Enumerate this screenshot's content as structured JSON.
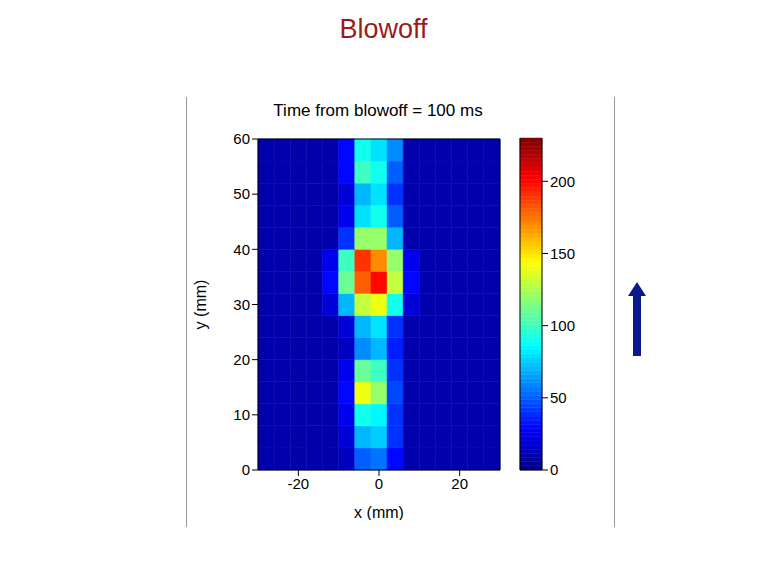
{
  "slide_title": "Blowoff",
  "chart_data": {
    "type": "heatmap",
    "title": "Time from blowoff = 100 ms",
    "x_label": "x (mm)",
    "y_label": "y (mm)",
    "xlim": [
      -30,
      30
    ],
    "ylim": [
      0,
      60
    ],
    "xticks": [
      -20,
      0,
      20
    ],
    "yticks": [
      0,
      10,
      20,
      30,
      40,
      50,
      60
    ],
    "grid": false,
    "x_edges": [
      -30,
      -26,
      -22,
      -18,
      -14,
      -10,
      -6,
      -2,
      2,
      6,
      10,
      14,
      18,
      22,
      26,
      30
    ],
    "y_edges": [
      0,
      4,
      8,
      12,
      16,
      20,
      24,
      28,
      32,
      36,
      40,
      44,
      48,
      52,
      56,
      60
    ],
    "cells": [
      [
        10,
        10,
        10,
        10,
        10,
        15,
        50,
        55,
        30,
        10,
        10,
        10,
        10,
        10,
        10
      ],
      [
        10,
        10,
        10,
        10,
        10,
        20,
        70,
        75,
        40,
        10,
        10,
        10,
        10,
        10,
        10
      ],
      [
        10,
        10,
        10,
        10,
        10,
        25,
        90,
        85,
        40,
        10,
        10,
        10,
        10,
        10,
        10
      ],
      [
        10,
        10,
        10,
        10,
        10,
        30,
        140,
        120,
        45,
        10,
        10,
        10,
        10,
        10,
        10
      ],
      [
        10,
        10,
        10,
        10,
        10,
        25,
        110,
        100,
        40,
        10,
        10,
        10,
        10,
        10,
        10
      ],
      [
        10,
        10,
        10,
        10,
        10,
        15,
        60,
        70,
        35,
        10,
        10,
        10,
        10,
        10,
        10
      ],
      [
        10,
        10,
        10,
        10,
        10,
        20,
        70,
        80,
        40,
        10,
        10,
        10,
        10,
        10,
        10
      ],
      [
        10,
        10,
        10,
        10,
        20,
        70,
        130,
        140,
        90,
        20,
        10,
        10,
        10,
        10,
        10
      ],
      [
        10,
        10,
        10,
        10,
        30,
        110,
        180,
        200,
        130,
        30,
        10,
        10,
        10,
        10,
        10
      ],
      [
        10,
        10,
        10,
        10,
        25,
        100,
        190,
        170,
        120,
        25,
        10,
        10,
        10,
        10,
        10
      ],
      [
        10,
        10,
        10,
        10,
        10,
        40,
        120,
        120,
        70,
        10,
        10,
        10,
        10,
        10,
        10
      ],
      [
        10,
        10,
        10,
        10,
        10,
        25,
        80,
        90,
        50,
        10,
        10,
        10,
        10,
        10,
        10
      ],
      [
        10,
        10,
        10,
        10,
        10,
        20,
        70,
        80,
        40,
        10,
        10,
        10,
        10,
        10,
        10
      ],
      [
        10,
        10,
        10,
        10,
        10,
        30,
        100,
        90,
        50,
        10,
        10,
        10,
        10,
        10,
        10
      ],
      [
        10,
        10,
        10,
        10,
        10,
        30,
        90,
        80,
        60,
        10,
        10,
        10,
        10,
        10,
        10
      ]
    ],
    "colorbar": {
      "range": [
        0,
        230
      ],
      "ticks": [
        0,
        50,
        100,
        150,
        200
      ]
    }
  }
}
